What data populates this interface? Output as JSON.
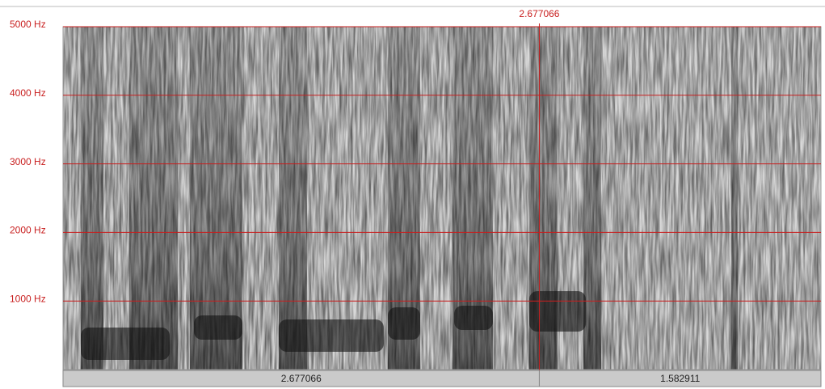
{
  "chart_data": {
    "type": "spectrogram",
    "ylim": [
      0,
      5000
    ],
    "yticks": [
      {
        "value": 1000,
        "label": "1000 Hz"
      },
      {
        "value": 2000,
        "label": "2000 Hz"
      },
      {
        "value": 3000,
        "label": "3000 Hz"
      },
      {
        "value": 4000,
        "label": "4000 Hz"
      },
      {
        "value": 5000,
        "label": "5000 Hz"
      }
    ],
    "xlim": [
      0,
      4.259977
    ],
    "cursor": 2.677066,
    "segments": [
      2.677066,
      1.582911
    ],
    "grid": true,
    "grid_color": "#c81e1e"
  }
}
